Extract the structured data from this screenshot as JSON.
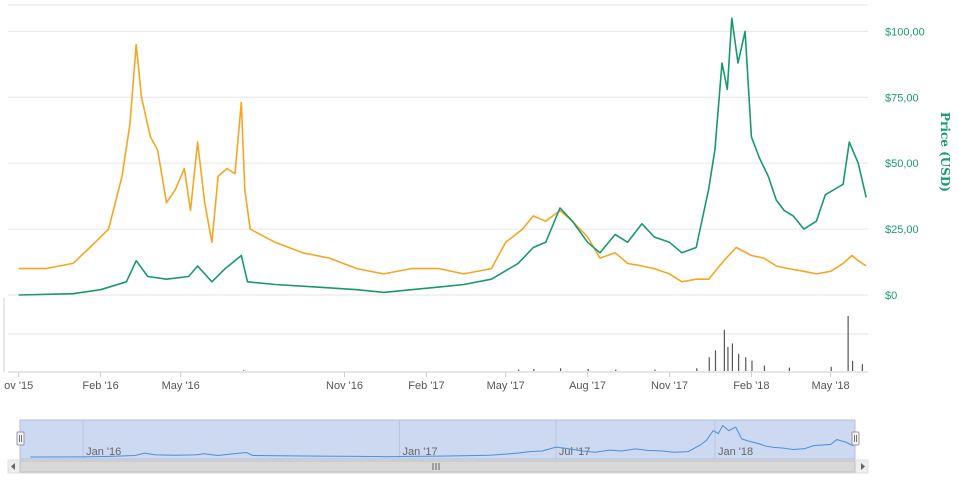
{
  "chart_data": {
    "type": "line",
    "ylabel": "Price (USD)",
    "y_ticks": [
      "$0",
      "$25,00",
      "$50,00",
      "$75,00",
      "$100,00"
    ],
    "ylim": [
      0,
      110
    ],
    "x_ticks": [
      {
        "label": "ov '15",
        "x": "2015-11-01"
      },
      {
        "label": "Feb '16",
        "x": "2016-02-01"
      },
      {
        "label": "May '16",
        "x": "2016-05-01"
      },
      {
        "label": "Nov '16",
        "x": "2016-11-01"
      },
      {
        "label": "Feb '17",
        "x": "2017-02-01"
      },
      {
        "label": "May '17",
        "x": "2017-05-01"
      },
      {
        "label": "Aug '17",
        "x": "2017-08-01"
      },
      {
        "label": "Nov '17",
        "x": "2017-11-01"
      },
      {
        "label": "Feb '18",
        "x": "2018-02-01"
      },
      {
        "label": "May '18",
        "x": "2018-05-01"
      }
    ],
    "series": [
      {
        "color": "#f5a623",
        "points": [
          [
            "2015-11-01",
            10
          ],
          [
            "2015-12-01",
            10
          ],
          [
            "2016-01-01",
            12
          ],
          [
            "2016-01-20",
            18
          ],
          [
            "2016-02-10",
            25
          ],
          [
            "2016-02-25",
            45
          ],
          [
            "2016-03-05",
            65
          ],
          [
            "2016-03-12",
            95
          ],
          [
            "2016-03-18",
            75
          ],
          [
            "2016-03-28",
            60
          ],
          [
            "2016-04-05",
            55
          ],
          [
            "2016-04-15",
            35
          ],
          [
            "2016-04-25",
            40
          ],
          [
            "2016-05-05",
            48
          ],
          [
            "2016-05-12",
            32
          ],
          [
            "2016-05-20",
            58
          ],
          [
            "2016-05-28",
            35
          ],
          [
            "2016-06-05",
            20
          ],
          [
            "2016-06-12",
            45
          ],
          [
            "2016-06-22",
            48
          ],
          [
            "2016-07-01",
            46
          ],
          [
            "2016-07-08",
            73
          ],
          [
            "2016-07-12",
            40
          ],
          [
            "2016-07-18",
            25
          ],
          [
            "2016-08-15",
            20
          ],
          [
            "2016-09-15",
            16
          ],
          [
            "2016-10-15",
            14
          ],
          [
            "2016-11-15",
            10
          ],
          [
            "2016-12-15",
            8
          ],
          [
            "2017-01-15",
            10
          ],
          [
            "2017-02-15",
            10
          ],
          [
            "2017-03-15",
            8
          ],
          [
            "2017-04-15",
            10
          ],
          [
            "2017-05-01",
            20
          ],
          [
            "2017-05-20",
            25
          ],
          [
            "2017-06-01",
            30
          ],
          [
            "2017-06-15",
            28
          ],
          [
            "2017-07-01",
            32
          ],
          [
            "2017-07-15",
            28
          ],
          [
            "2017-08-01",
            22
          ],
          [
            "2017-08-15",
            14
          ],
          [
            "2017-09-01",
            16
          ],
          [
            "2017-09-15",
            12
          ],
          [
            "2017-10-01",
            11
          ],
          [
            "2017-10-15",
            10
          ],
          [
            "2017-11-01",
            8
          ],
          [
            "2017-11-15",
            5
          ],
          [
            "2017-12-01",
            6
          ],
          [
            "2017-12-15",
            6
          ],
          [
            "2018-01-01",
            13
          ],
          [
            "2018-01-15",
            18
          ],
          [
            "2018-02-01",
            15
          ],
          [
            "2018-02-15",
            14
          ],
          [
            "2018-03-01",
            11
          ],
          [
            "2018-03-15",
            10
          ],
          [
            "2018-04-01",
            9
          ],
          [
            "2018-04-15",
            8
          ],
          [
            "2018-05-01",
            9
          ],
          [
            "2018-05-15",
            12
          ],
          [
            "2018-05-25",
            15
          ],
          [
            "2018-06-01",
            13
          ],
          [
            "2018-06-10",
            11
          ]
        ]
      },
      {
        "color": "#18996b",
        "points": [
          [
            "2015-11-01",
            0
          ],
          [
            "2016-01-01",
            0.5
          ],
          [
            "2016-02-01",
            2
          ],
          [
            "2016-03-01",
            5
          ],
          [
            "2016-03-12",
            13
          ],
          [
            "2016-03-25",
            7
          ],
          [
            "2016-04-15",
            6
          ],
          [
            "2016-05-10",
            7
          ],
          [
            "2016-05-20",
            11
          ],
          [
            "2016-06-05",
            5
          ],
          [
            "2016-06-20",
            10
          ],
          [
            "2016-07-08",
            15
          ],
          [
            "2016-07-15",
            5
          ],
          [
            "2016-08-15",
            4
          ],
          [
            "2016-10-01",
            3
          ],
          [
            "2016-11-15",
            2
          ],
          [
            "2016-12-15",
            1
          ],
          [
            "2017-01-15",
            2
          ],
          [
            "2017-02-15",
            3
          ],
          [
            "2017-03-15",
            4
          ],
          [
            "2017-04-15",
            6
          ],
          [
            "2017-05-15",
            12
          ],
          [
            "2017-06-01",
            18
          ],
          [
            "2017-06-15",
            20
          ],
          [
            "2017-07-01",
            33
          ],
          [
            "2017-07-15",
            28
          ],
          [
            "2017-08-01",
            20
          ],
          [
            "2017-08-15",
            16
          ],
          [
            "2017-09-01",
            23
          ],
          [
            "2017-09-15",
            20
          ],
          [
            "2017-10-01",
            27
          ],
          [
            "2017-10-15",
            22
          ],
          [
            "2017-11-01",
            20
          ],
          [
            "2017-11-15",
            16
          ],
          [
            "2017-12-01",
            18
          ],
          [
            "2017-12-15",
            40
          ],
          [
            "2017-12-22",
            55
          ],
          [
            "2017-12-30",
            88
          ],
          [
            "2018-01-05",
            78
          ],
          [
            "2018-01-10",
            105
          ],
          [
            "2018-01-17",
            88
          ],
          [
            "2018-01-25",
            100
          ],
          [
            "2018-02-01",
            60
          ],
          [
            "2018-02-10",
            52
          ],
          [
            "2018-02-20",
            45
          ],
          [
            "2018-03-01",
            36
          ],
          [
            "2018-03-10",
            32
          ],
          [
            "2018-03-20",
            30
          ],
          [
            "2018-04-01",
            25
          ],
          [
            "2018-04-15",
            28
          ],
          [
            "2018-04-25",
            38
          ],
          [
            "2018-05-05",
            40
          ],
          [
            "2018-05-15",
            42
          ],
          [
            "2018-05-22",
            58
          ],
          [
            "2018-06-01",
            50
          ],
          [
            "2018-06-10",
            37
          ]
        ]
      }
    ],
    "volume": [
      [
        "2016-07-10",
        1
      ],
      [
        "2017-05-15",
        2
      ],
      [
        "2017-06-01",
        3
      ],
      [
        "2017-07-01",
        4
      ],
      [
        "2017-08-01",
        3
      ],
      [
        "2017-09-01",
        2
      ],
      [
        "2017-10-15",
        2
      ],
      [
        "2017-12-01",
        4
      ],
      [
        "2017-12-15",
        20
      ],
      [
        "2017-12-22",
        30
      ],
      [
        "2018-01-01",
        60
      ],
      [
        "2018-01-05",
        35
      ],
      [
        "2018-01-10",
        40
      ],
      [
        "2018-01-17",
        25
      ],
      [
        "2018-01-25",
        20
      ],
      [
        "2018-02-01",
        15
      ],
      [
        "2018-02-15",
        8
      ],
      [
        "2018-03-15",
        5
      ],
      [
        "2018-05-01",
        6
      ],
      [
        "2018-05-20",
        80
      ],
      [
        "2018-05-25",
        15
      ],
      [
        "2018-06-05",
        10
      ]
    ],
    "navigator": {
      "labels": [
        {
          "label": "Jan '16",
          "x": "2016-01-01"
        },
        {
          "label": "Jan '17",
          "x": "2017-01-01"
        },
        {
          "label": "Jul '17",
          "x": "2017-07-01"
        },
        {
          "label": "Jan '18",
          "x": "2018-01-01"
        }
      ]
    },
    "colors": {
      "grid": "#e6e6e6",
      "navigator_fill": "#ccd9f0",
      "navigator_line": "#4a90d9",
      "volume": "#555555"
    }
  }
}
